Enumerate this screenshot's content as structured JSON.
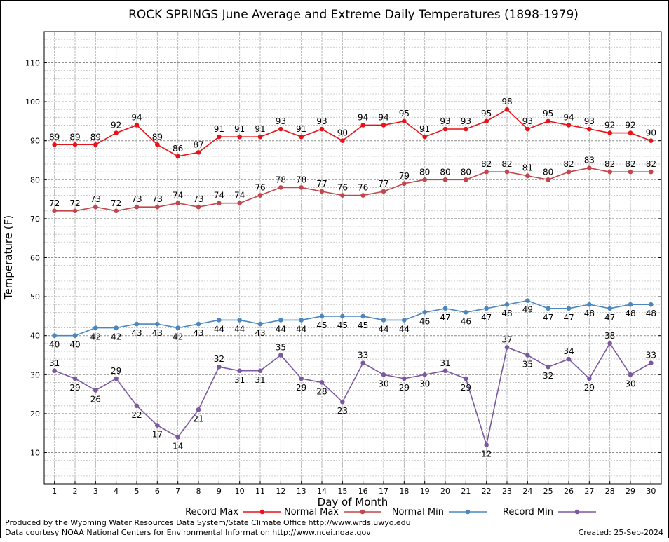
{
  "chart_data": {
    "type": "line",
    "title": "ROCK SPRINGS June Average and Extreme Daily Temperatures (1898-1979)",
    "xlabel": "Day of Month",
    "ylabel": "Temperature (F)",
    "x": [
      1,
      2,
      3,
      4,
      5,
      6,
      7,
      8,
      9,
      10,
      11,
      12,
      13,
      14,
      15,
      16,
      17,
      18,
      19,
      20,
      21,
      22,
      23,
      24,
      25,
      26,
      27,
      28,
      29,
      30
    ],
    "xlim": [
      0.5,
      30.5
    ],
    "ylim": [
      2,
      118
    ],
    "yticks": [
      10,
      20,
      30,
      40,
      50,
      60,
      70,
      80,
      90,
      100,
      110
    ],
    "grid": true,
    "legend_position": "bottom",
    "series": [
      {
        "name": "Record Max",
        "color": "#e8131a",
        "values": [
          89,
          89,
          89,
          92,
          94,
          89,
          86,
          87,
          91,
          91,
          91,
          93,
          91,
          93,
          90,
          94,
          94,
          95,
          91,
          93,
          93,
          95,
          98,
          93,
          95,
          94,
          93,
          92,
          92,
          90
        ]
      },
      {
        "name": "Normal Max",
        "color": "#c2464b",
        "values": [
          72,
          72,
          73,
          72,
          73,
          73,
          74,
          73,
          74,
          74,
          76,
          78,
          78,
          77,
          76,
          76,
          77,
          79,
          80,
          80,
          80,
          82,
          82,
          81,
          80,
          82,
          83,
          82,
          82,
          82
        ]
      },
      {
        "name": "Normal Min",
        "color": "#4a86c0",
        "values": [
          40,
          40,
          42,
          42,
          43,
          43,
          42,
          43,
          44,
          44,
          43,
          44,
          44,
          45,
          45,
          45,
          44,
          44,
          46,
          47,
          46,
          47,
          48,
          49,
          47,
          47,
          48,
          47,
          48,
          48
        ]
      },
      {
        "name": "Record Min",
        "color": "#7b58a0",
        "values": [
          31,
          29,
          26,
          29,
          22,
          17,
          14,
          21,
          32,
          31,
          31,
          35,
          29,
          28,
          23,
          33,
          30,
          29,
          30,
          31,
          29,
          12,
          37,
          35,
          32,
          34,
          29,
          38,
          30,
          33
        ]
      }
    ]
  },
  "footer": {
    "line1": "Produced by the Wyoming Water Resources Data System/State Climate Office http://www.wrds.uwyo.edu",
    "line2": "Data courtesy NOAA National Centers for Environmental Information http://www.ncei.noaa.gov",
    "created": "Created:  25-Sep-2024"
  }
}
